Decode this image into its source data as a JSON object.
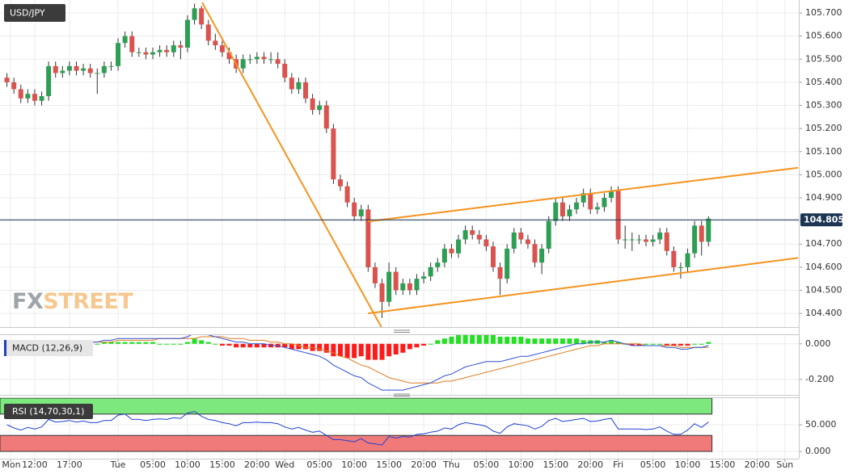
{
  "chart_data": [
    {
      "type": "candlestick",
      "title": "USD/JPY",
      "watermark": [
        "FX",
        "STREET"
      ],
      "up_color": "#2e9e55",
      "down_color": "#d9534f",
      "ohlc": [
        [
          105.42,
          105.44,
          105.38,
          105.4
        ],
        [
          105.4,
          105.42,
          105.35,
          105.37
        ],
        [
          105.37,
          105.39,
          105.31,
          105.33
        ],
        [
          105.33,
          105.37,
          105.31,
          105.35
        ],
        [
          105.35,
          105.37,
          105.3,
          105.32
        ],
        [
          105.32,
          105.36,
          105.3,
          105.34
        ],
        [
          105.34,
          105.49,
          105.32,
          105.47
        ],
        [
          105.47,
          105.49,
          105.42,
          105.44
        ],
        [
          105.44,
          105.47,
          105.42,
          105.45
        ],
        [
          105.45,
          105.49,
          105.43,
          105.47
        ],
        [
          105.47,
          105.49,
          105.43,
          105.45
        ],
        [
          105.45,
          105.48,
          105.43,
          105.46
        ],
        [
          105.46,
          105.48,
          105.42,
          105.44
        ],
        [
          105.44,
          105.46,
          105.35,
          105.44
        ],
        [
          105.44,
          105.49,
          105.42,
          105.47
        ],
        [
          105.47,
          105.49,
          105.45,
          105.47
        ],
        [
          105.47,
          105.59,
          105.45,
          105.57
        ],
        [
          105.57,
          105.62,
          105.55,
          105.6
        ],
        [
          105.6,
          105.62,
          105.51,
          105.53
        ],
        [
          105.53,
          105.55,
          105.51,
          105.53
        ],
        [
          105.53,
          105.55,
          105.5,
          105.52
        ],
        [
          105.52,
          105.55,
          105.5,
          105.53
        ],
        [
          105.53,
          105.56,
          105.51,
          105.54
        ],
        [
          105.54,
          105.56,
          105.51,
          105.53
        ],
        [
          105.53,
          105.58,
          105.51,
          105.56
        ],
        [
          105.56,
          105.58,
          105.5,
          105.55
        ],
        [
          105.55,
          105.69,
          105.53,
          105.67
        ],
        [
          105.67,
          105.74,
          105.65,
          105.72
        ],
        [
          105.72,
          105.73,
          105.63,
          105.65
        ],
        [
          105.65,
          105.67,
          105.56,
          105.58
        ],
        [
          105.58,
          105.61,
          105.54,
          105.56
        ],
        [
          105.56,
          105.58,
          105.51,
          105.53
        ],
        [
          105.53,
          105.55,
          105.48,
          105.5
        ],
        [
          105.5,
          105.52,
          105.44,
          105.46
        ],
        [
          105.46,
          105.52,
          105.44,
          105.5
        ],
        [
          105.5,
          105.52,
          105.48,
          105.5
        ],
        [
          105.5,
          105.53,
          105.48,
          105.51
        ],
        [
          105.51,
          105.53,
          105.48,
          105.5
        ],
        [
          105.5,
          105.53,
          105.48,
          105.5
        ],
        [
          105.5,
          105.53,
          105.46,
          105.48
        ],
        [
          105.48,
          105.5,
          105.4,
          105.42
        ],
        [
          105.42,
          105.44,
          105.35,
          105.37
        ],
        [
          105.37,
          105.42,
          105.35,
          105.4
        ],
        [
          105.4,
          105.42,
          105.31,
          105.33
        ],
        [
          105.33,
          105.35,
          105.26,
          105.28
        ],
        [
          105.28,
          105.32,
          105.26,
          105.3
        ],
        [
          105.3,
          105.32,
          105.18,
          105.2
        ],
        [
          105.2,
          105.22,
          104.96,
          104.98
        ],
        [
          104.98,
          105.0,
          104.93,
          104.95
        ],
        [
          104.95,
          104.97,
          104.86,
          104.88
        ],
        [
          104.88,
          104.9,
          104.8,
          104.82
        ],
        [
          104.82,
          104.87,
          104.8,
          104.85
        ],
        [
          104.85,
          104.87,
          104.58,
          104.6
        ],
        [
          104.6,
          104.62,
          104.51,
          104.53
        ],
        [
          104.53,
          104.55,
          104.38,
          104.45
        ],
        [
          104.45,
          104.62,
          104.43,
          104.58
        ],
        [
          104.58,
          104.6,
          104.48,
          104.5
        ],
        [
          104.5,
          104.55,
          104.48,
          104.53
        ],
        [
          104.53,
          104.55,
          104.48,
          104.5
        ],
        [
          104.5,
          104.57,
          104.48,
          104.55
        ],
        [
          104.55,
          104.58,
          104.53,
          104.56
        ],
        [
          104.56,
          104.62,
          104.54,
          104.6
        ],
        [
          104.6,
          104.64,
          104.58,
          104.62
        ],
        [
          104.62,
          104.7,
          104.6,
          104.68
        ],
        [
          104.68,
          104.7,
          104.64,
          104.66
        ],
        [
          104.66,
          104.74,
          104.64,
          104.72
        ],
        [
          104.72,
          104.78,
          104.7,
          104.76
        ],
        [
          104.76,
          104.78,
          104.72,
          104.74
        ],
        [
          104.74,
          104.76,
          104.7,
          104.72
        ],
        [
          104.72,
          104.74,
          104.67,
          104.69
        ],
        [
          104.69,
          104.71,
          104.58,
          104.6
        ],
        [
          104.6,
          104.62,
          104.48,
          104.55
        ],
        [
          104.55,
          104.7,
          104.53,
          104.68
        ],
        [
          104.68,
          104.77,
          104.66,
          104.75
        ],
        [
          104.75,
          104.77,
          104.7,
          104.72
        ],
        [
          104.72,
          104.74,
          104.68,
          104.7
        ],
        [
          104.7,
          104.72,
          104.6,
          104.62
        ],
        [
          104.62,
          104.7,
          104.57,
          104.68
        ],
        [
          104.68,
          104.82,
          104.66,
          104.8
        ],
        [
          104.8,
          104.9,
          104.78,
          104.88
        ],
        [
          104.88,
          104.9,
          104.8,
          104.82
        ],
        [
          104.82,
          104.87,
          104.8,
          104.85
        ],
        [
          104.85,
          104.9,
          104.83,
          104.88
        ],
        [
          104.88,
          104.94,
          104.86,
          104.92
        ],
        [
          104.92,
          104.94,
          104.83,
          104.85
        ],
        [
          104.85,
          104.88,
          104.83,
          104.86
        ],
        [
          104.86,
          104.92,
          104.84,
          104.9
        ],
        [
          104.9,
          104.95,
          104.88,
          104.93
        ],
        [
          104.93,
          104.95,
          104.7,
          104.72
        ],
        [
          104.72,
          104.78,
          104.68,
          104.72
        ],
        [
          104.72,
          104.75,
          104.67,
          104.72
        ],
        [
          104.72,
          104.74,
          104.7,
          104.72
        ],
        [
          104.72,
          104.74,
          104.69,
          104.71
        ],
        [
          104.71,
          104.74,
          104.69,
          104.72
        ],
        [
          104.72,
          104.77,
          104.7,
          104.75
        ],
        [
          104.75,
          104.77,
          104.65,
          104.67
        ],
        [
          104.67,
          104.69,
          104.58,
          104.6
        ],
        [
          104.6,
          104.62,
          104.55,
          104.6
        ],
        [
          104.6,
          104.68,
          104.58,
          104.66
        ],
        [
          104.66,
          104.8,
          104.64,
          104.78
        ],
        [
          104.78,
          104.8,
          104.65,
          104.71
        ],
        [
          104.71,
          104.82,
          104.69,
          104.81
        ]
      ],
      "last_price": 104.805,
      "last_price_color": "#1c3553",
      "trendline_color": "#f7931e",
      "trendlines": [
        {
          "x": [
            28.1,
            53.9
          ],
          "y": [
            105.745,
            104.341
          ]
        },
        {
          "x": [
            52,
            113.9
          ],
          "y": [
            104.798,
            105.03
          ]
        },
        {
          "x": [
            52,
            113.9
          ],
          "y": [
            104.4,
            104.64
          ]
        }
      ],
      "xlim": [
        -1,
        114
      ],
      "xticks": [
        {
          "value": 0.5,
          "label": "Mon"
        },
        {
          "value": 4,
          "label": "12:00"
        },
        {
          "value": 9,
          "label": "17:00"
        },
        {
          "value": 16,
          "label": "Tue"
        },
        {
          "value": 21,
          "label": "05:00"
        },
        {
          "value": 26,
          "label": "10:00"
        },
        {
          "value": 31,
          "label": "15:00"
        },
        {
          "value": 36,
          "label": "20:00"
        },
        {
          "value": 40,
          "label": "Wed"
        },
        {
          "value": 45,
          "label": "05:00"
        },
        {
          "value": 50,
          "label": "10:00"
        },
        {
          "value": 55,
          "label": "15:00"
        },
        {
          "value": 60,
          "label": "20:00"
        },
        {
          "value": 64,
          "label": "Thu"
        },
        {
          "value": 69,
          "label": "05:00"
        },
        {
          "value": 74,
          "label": "10:00"
        },
        {
          "value": 79,
          "label": "15:00"
        },
        {
          "value": 84,
          "label": "20:00"
        },
        {
          "value": 88,
          "label": "Fri"
        },
        {
          "value": 93,
          "label": "05:00"
        },
        {
          "value": 98,
          "label": "10:00"
        },
        {
          "value": 103,
          "label": "15:00"
        },
        {
          "value": 108,
          "label": "20:00"
        },
        {
          "value": 112,
          "label": "Sun"
        }
      ],
      "ylim": [
        104.341,
        105.756
      ],
      "yticks": [
        {
          "value": 104.4,
          "label": "104.400"
        },
        {
          "value": 104.5,
          "label": "104.500"
        },
        {
          "value": 104.6,
          "label": "104.600"
        },
        {
          "value": 104.7,
          "label": "104.700"
        },
        {
          "value": 104.8,
          "label": "104.800"
        },
        {
          "value": 104.9,
          "label": "104.900"
        },
        {
          "value": 105.0,
          "label": "105.000"
        },
        {
          "value": 105.1,
          "label": "105.100"
        },
        {
          "value": 105.2,
          "label": "105.200"
        },
        {
          "value": 105.3,
          "label": "105.300"
        },
        {
          "value": 105.4,
          "label": "105.400"
        },
        {
          "value": 105.5,
          "label": "105.500"
        },
        {
          "value": 105.6,
          "label": "105.600"
        },
        {
          "value": 105.7,
          "label": "105.700"
        }
      ],
      "grid": true
    },
    {
      "type": "macd",
      "title": "MACD (12,26,9)",
      "macd_color": "#2f4fd0",
      "signal_color": "#e07b20",
      "up_color": "#22e022",
      "down_color": "#ff1a1a",
      "macd": [
        0.0,
        0.0,
        -0.01,
        -0.01,
        -0.01,
        0.0,
        0.01,
        0.01,
        0.01,
        0.01,
        0.01,
        0.01,
        0.01,
        0.01,
        0.02,
        0.02,
        0.03,
        0.03,
        0.03,
        0.03,
        0.03,
        0.03,
        0.03,
        0.03,
        0.03,
        0.03,
        0.04,
        0.06,
        0.06,
        0.05,
        0.04,
        0.03,
        0.02,
        0.01,
        0.01,
        0.0,
        0.0,
        0.0,
        -0.01,
        -0.01,
        -0.02,
        -0.03,
        -0.04,
        -0.05,
        -0.06,
        -0.07,
        -0.09,
        -0.12,
        -0.14,
        -0.16,
        -0.18,
        -0.19,
        -0.22,
        -0.24,
        -0.26,
        -0.26,
        -0.26,
        -0.26,
        -0.25,
        -0.24,
        -0.23,
        -0.22,
        -0.2,
        -0.18,
        -0.17,
        -0.15,
        -0.13,
        -0.12,
        -0.11,
        -0.1,
        -0.1,
        -0.1,
        -0.09,
        -0.08,
        -0.07,
        -0.07,
        -0.06,
        -0.05,
        -0.04,
        -0.03,
        -0.02,
        -0.01,
        0.0,
        0.0,
        0.01,
        0.01,
        0.01,
        0.02,
        0.01,
        0.0,
        -0.01,
        -0.01,
        -0.01,
        -0.01,
        -0.01,
        -0.02,
        -0.02,
        -0.03,
        -0.03,
        -0.02,
        -0.02,
        -0.01
      ],
      "signal": [
        0.01,
        0.01,
        0.0,
        0.0,
        0.0,
        0.0,
        0.0,
        0.0,
        0.0,
        0.0,
        0.01,
        0.01,
        0.01,
        0.01,
        0.01,
        0.01,
        0.02,
        0.02,
        0.02,
        0.02,
        0.02,
        0.02,
        0.03,
        0.03,
        0.03,
        0.03,
        0.03,
        0.03,
        0.04,
        0.04,
        0.04,
        0.04,
        0.03,
        0.03,
        0.03,
        0.02,
        0.02,
        0.02,
        0.01,
        0.01,
        0.0,
        0.0,
        -0.01,
        -0.02,
        -0.02,
        -0.03,
        -0.04,
        -0.05,
        -0.07,
        -0.08,
        -0.1,
        -0.12,
        -0.13,
        -0.15,
        -0.17,
        -0.19,
        -0.2,
        -0.21,
        -0.22,
        -0.22,
        -0.22,
        -0.22,
        -0.22,
        -0.21,
        -0.21,
        -0.2,
        -0.19,
        -0.18,
        -0.17,
        -0.16,
        -0.15,
        -0.14,
        -0.13,
        -0.12,
        -0.11,
        -0.1,
        -0.09,
        -0.08,
        -0.07,
        -0.06,
        -0.05,
        -0.04,
        -0.03,
        -0.02,
        -0.01,
        -0.01,
        0.0,
        0.0,
        0.0,
        0.0,
        0.0,
        0.0,
        -0.01,
        -0.01,
        -0.01,
        -0.01,
        -0.01,
        -0.02,
        -0.02,
        -0.02,
        -0.02,
        -0.02
      ],
      "histogram": [
        -0.01,
        -0.01,
        -0.01,
        -0.01,
        -0.01,
        0.0,
        0.01,
        0.01,
        0.01,
        0.01,
        0.0,
        0.0,
        0.0,
        0.0,
        0.01,
        0.01,
        0.01,
        0.01,
        0.01,
        0.01,
        0.01,
        0.01,
        0.0,
        0.0,
        0.0,
        0.0,
        0.01,
        0.03,
        0.02,
        0.01,
        0.0,
        -0.01,
        -0.01,
        -0.02,
        -0.02,
        -0.02,
        -0.02,
        -0.02,
        -0.02,
        -0.02,
        -0.02,
        -0.03,
        -0.03,
        -0.03,
        -0.04,
        -0.04,
        -0.05,
        -0.07,
        -0.07,
        -0.08,
        -0.08,
        -0.07,
        -0.09,
        -0.09,
        -0.09,
        -0.07,
        -0.06,
        -0.05,
        -0.03,
        -0.02,
        -0.01,
        0.0,
        0.02,
        0.03,
        0.04,
        0.05,
        0.06,
        0.06,
        0.06,
        0.06,
        0.05,
        0.04,
        0.04,
        0.04,
        0.04,
        0.03,
        0.03,
        0.03,
        0.03,
        0.03,
        0.03,
        0.03,
        0.03,
        0.02,
        0.02,
        0.02,
        0.01,
        0.02,
        0.01,
        0.0,
        -0.01,
        -0.01,
        0.0,
        0.0,
        0.0,
        -0.01,
        -0.01,
        -0.01,
        -0.01,
        0.0,
        0.0,
        0.01
      ],
      "ylim": [
        -0.287,
        0.049
      ],
      "yticks": [
        {
          "value": 0,
          "label": "0.000"
        },
        {
          "value": -0.2,
          "label": "-0.200"
        }
      ]
    },
    {
      "type": "rsi",
      "title": "RSI (14,70,30,1)",
      "color": "#2040d0",
      "upper_zone": [
        70,
        100
      ],
      "upper_color": "#7de87d",
      "lower_zone": [
        0,
        30
      ],
      "lower_color": "#f07a7a",
      "values": [
        50,
        44,
        40,
        45,
        42,
        46,
        60,
        55,
        56,
        58,
        55,
        57,
        54,
        54,
        58,
        58,
        68,
        70,
        60,
        60,
        58,
        60,
        61,
        60,
        63,
        62,
        72,
        75,
        66,
        60,
        58,
        54,
        52,
        48,
        54,
        54,
        55,
        54,
        54,
        52,
        46,
        42,
        45,
        40,
        36,
        38,
        30,
        22,
        22,
        20,
        18,
        24,
        16,
        14,
        12,
        28,
        25,
        28,
        27,
        32,
        33,
        36,
        38,
        44,
        42,
        50,
        54,
        52,
        50,
        47,
        38,
        34,
        46,
        52,
        50,
        48,
        42,
        47,
        58,
        62,
        56,
        58,
        60,
        62,
        56,
        57,
        60,
        62,
        42,
        42,
        42,
        42,
        41,
        42,
        46,
        38,
        32,
        32,
        40,
        52,
        45,
        55
      ],
      "ylim": [
        -13.6,
        100
      ],
      "yticks": [
        {
          "value": 50,
          "label": "50.000"
        },
        {
          "value": 0,
          "label": "0.000"
        }
      ]
    }
  ]
}
